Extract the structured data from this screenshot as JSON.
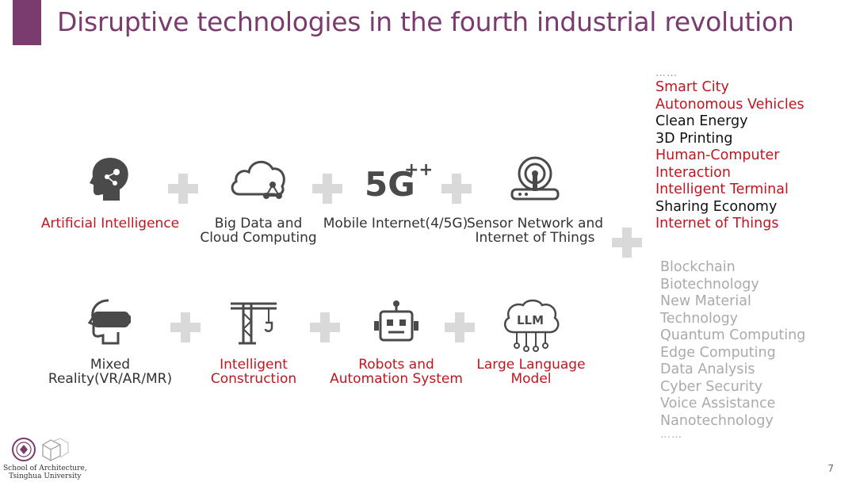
{
  "title": "Disruptive technologies in the fourth industrial revolution",
  "row1": [
    {
      "label": "Artificial Intelligence",
      "icon": "ai-head-icon",
      "highlight": true
    },
    {
      "label": "Big Data and\nCloud Computing",
      "icon": "cloud-icon",
      "highlight": false
    },
    {
      "label": "Mobile Internet(4/5G)",
      "icon": "5g-icon",
      "highlight": false
    },
    {
      "label": "Sensor Network and\nInternet of Things",
      "icon": "sensor-icon",
      "highlight": false
    }
  ],
  "row2": [
    {
      "label": "Mixed\nReality(VR/AR/MR)",
      "icon": "vr-headset-icon",
      "highlight": false
    },
    {
      "label": "Intelligent\nConstruction",
      "icon": "crane-icon",
      "highlight": true
    },
    {
      "label": "Robots and\nAutomation System",
      "icon": "robot-icon",
      "highlight": true
    },
    {
      "label": "Large Language\nModel",
      "icon": "llm-brain-icon",
      "highlight": true
    }
  ],
  "list1": {
    "dots": "……",
    "items": [
      {
        "text": "Smart City",
        "color": "#c0161f"
      },
      {
        "text": "Autonomous Vehicles",
        "color": "#c0161f"
      },
      {
        "text": "Clean Energy",
        "color": "#111111"
      },
      {
        "text": "3D Printing",
        "color": "#111111"
      },
      {
        "text": "Human-Computer",
        "color": "#c0161f"
      },
      {
        "text": "Interaction",
        "color": "#c0161f"
      },
      {
        "text": "Intelligent Terminal",
        "color": "#c0161f"
      },
      {
        "text": "Sharing Economy",
        "color": "#111111"
      },
      {
        "text": "Internet of Things",
        "color": "#c0161f"
      }
    ]
  },
  "list2": {
    "items": [
      "Blockchain",
      "Biotechnology",
      "New Material",
      "Technology",
      "Quantum Computing",
      "Edge Computing",
      "Data Analysis",
      "Cyber Security",
      "Voice Assistance",
      "Nanotechnology"
    ],
    "dots": "……"
  },
  "footer": {
    "school": "School of Architecture,\nTsinghua University",
    "page": "7"
  },
  "colors": {
    "accent": "#7a3b6e",
    "highlight": "#c0161f",
    "muted": "#aaaaaa"
  }
}
